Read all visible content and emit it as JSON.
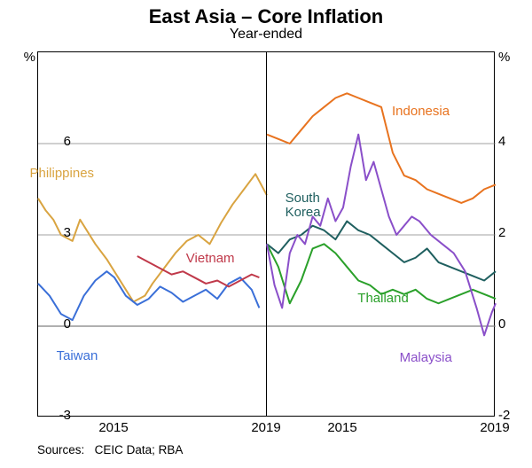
{
  "title": "East Asia – Core Inflation",
  "subtitle": "Year-ended",
  "sources_label": "Sources:",
  "sources_value": "CEIC Data; RBA",
  "pct_symbol": "%",
  "left_panel": {
    "ylim": [
      -3,
      9
    ],
    "yticks": [
      -3,
      0,
      3,
      6
    ],
    "xlim": [
      2013,
      2019
    ],
    "xticks": [
      2015,
      2019
    ],
    "grid_color": "#808080",
    "series": {
      "philippines": {
        "label": "Philippines",
        "color": "#d9a441",
        "label_pos": {
          "x": 2013.5,
          "y": 5.0
        },
        "data": [
          [
            2013.0,
            4.2
          ],
          [
            2013.2,
            3.8
          ],
          [
            2013.4,
            3.5
          ],
          [
            2013.6,
            3.0
          ],
          [
            2013.9,
            2.8
          ],
          [
            2014.1,
            3.5
          ],
          [
            2014.3,
            3.1
          ],
          [
            2014.5,
            2.7
          ],
          [
            2014.8,
            2.2
          ],
          [
            2015.0,
            1.8
          ],
          [
            2015.3,
            1.2
          ],
          [
            2015.5,
            0.8
          ],
          [
            2015.8,
            1.0
          ],
          [
            2016.0,
            1.4
          ],
          [
            2016.3,
            1.9
          ],
          [
            2016.6,
            2.4
          ],
          [
            2016.9,
            2.8
          ],
          [
            2017.2,
            3.0
          ],
          [
            2017.5,
            2.7
          ],
          [
            2017.8,
            3.4
          ],
          [
            2018.1,
            4.0
          ],
          [
            2018.4,
            4.5
          ],
          [
            2018.7,
            5.0
          ],
          [
            2019.0,
            4.3
          ]
        ]
      },
      "taiwan": {
        "label": "Taiwan",
        "color": "#3a6fd8",
        "label_pos": {
          "x": 2014.2,
          "y": -1.0
        },
        "data": [
          [
            2013.0,
            1.4
          ],
          [
            2013.3,
            1.0
          ],
          [
            2013.6,
            0.4
          ],
          [
            2013.9,
            0.2
          ],
          [
            2014.2,
            1.0
          ],
          [
            2014.5,
            1.5
          ],
          [
            2014.8,
            1.8
          ],
          [
            2015.0,
            1.6
          ],
          [
            2015.3,
            1.0
          ],
          [
            2015.6,
            0.7
          ],
          [
            2015.9,
            0.9
          ],
          [
            2016.2,
            1.3
          ],
          [
            2016.5,
            1.1
          ],
          [
            2016.8,
            0.8
          ],
          [
            2017.1,
            1.0
          ],
          [
            2017.4,
            1.2
          ],
          [
            2017.7,
            0.9
          ],
          [
            2018.0,
            1.4
          ],
          [
            2018.3,
            1.6
          ],
          [
            2018.6,
            1.2
          ],
          [
            2018.8,
            0.6
          ]
        ]
      },
      "vietnam": {
        "label": "Vietnam",
        "color": "#c0394a",
        "label_pos": {
          "x": 2017.6,
          "y": 2.2
        },
        "data": [
          [
            2015.6,
            2.3
          ],
          [
            2015.9,
            2.1
          ],
          [
            2016.2,
            1.9
          ],
          [
            2016.5,
            1.7
          ],
          [
            2016.8,
            1.8
          ],
          [
            2017.1,
            1.6
          ],
          [
            2017.4,
            1.4
          ],
          [
            2017.7,
            1.5
          ],
          [
            2018.0,
            1.3
          ],
          [
            2018.3,
            1.5
          ],
          [
            2018.6,
            1.7
          ],
          [
            2018.8,
            1.6
          ]
        ]
      }
    }
  },
  "right_panel": {
    "ylim": [
      -2,
      6
    ],
    "yticks": [
      -2,
      0,
      2,
      4
    ],
    "xlim": [
      2013,
      2019
    ],
    "xticks": [
      2015,
      2019
    ],
    "grid_color": "#808080",
    "series": {
      "indonesia": {
        "label": "Indonesia",
        "color": "#e8731f",
        "label_pos": {
          "x": 2017.0,
          "y": 4.7
        },
        "data": [
          [
            2013.0,
            4.2
          ],
          [
            2013.3,
            4.1
          ],
          [
            2013.6,
            4.0
          ],
          [
            2013.9,
            4.3
          ],
          [
            2014.2,
            4.6
          ],
          [
            2014.5,
            4.8
          ],
          [
            2014.8,
            5.0
          ],
          [
            2015.1,
            5.1
          ],
          [
            2015.4,
            5.0
          ],
          [
            2015.7,
            4.9
          ],
          [
            2016.0,
            4.8
          ],
          [
            2016.3,
            3.8
          ],
          [
            2016.6,
            3.3
          ],
          [
            2016.9,
            3.2
          ],
          [
            2017.2,
            3.0
          ],
          [
            2017.5,
            2.9
          ],
          [
            2017.8,
            2.8
          ],
          [
            2018.1,
            2.7
          ],
          [
            2018.4,
            2.8
          ],
          [
            2018.7,
            3.0
          ],
          [
            2019.0,
            3.1
          ]
        ]
      },
      "south_korea": {
        "label": "South Korea",
        "color": "#1f5f5f",
        "label_pos": {
          "x": 2014.2,
          "y": 2.8
        },
        "data": [
          [
            2013.0,
            1.8
          ],
          [
            2013.3,
            1.6
          ],
          [
            2013.6,
            1.9
          ],
          [
            2013.9,
            2.0
          ],
          [
            2014.2,
            2.2
          ],
          [
            2014.5,
            2.1
          ],
          [
            2014.8,
            1.9
          ],
          [
            2015.1,
            2.3
          ],
          [
            2015.4,
            2.1
          ],
          [
            2015.7,
            2.0
          ],
          [
            2016.0,
            1.8
          ],
          [
            2016.3,
            1.6
          ],
          [
            2016.6,
            1.4
          ],
          [
            2016.9,
            1.5
          ],
          [
            2017.2,
            1.7
          ],
          [
            2017.5,
            1.4
          ],
          [
            2017.8,
            1.3
          ],
          [
            2018.1,
            1.2
          ],
          [
            2018.4,
            1.1
          ],
          [
            2018.7,
            1.0
          ],
          [
            2019.0,
            1.2
          ]
        ]
      },
      "thailand": {
        "label": "Thailand",
        "color": "#2aa02a",
        "label_pos": {
          "x": 2016.1,
          "y": 0.6
        },
        "data": [
          [
            2013.0,
            1.8
          ],
          [
            2013.3,
            1.3
          ],
          [
            2013.6,
            0.5
          ],
          [
            2013.9,
            1.0
          ],
          [
            2014.2,
            1.7
          ],
          [
            2014.5,
            1.8
          ],
          [
            2014.8,
            1.6
          ],
          [
            2015.1,
            1.3
          ],
          [
            2015.4,
            1.0
          ],
          [
            2015.7,
            0.9
          ],
          [
            2016.0,
            0.7
          ],
          [
            2016.3,
            0.8
          ],
          [
            2016.6,
            0.7
          ],
          [
            2016.9,
            0.8
          ],
          [
            2017.2,
            0.6
          ],
          [
            2017.5,
            0.5
          ],
          [
            2017.8,
            0.6
          ],
          [
            2018.1,
            0.7
          ],
          [
            2018.4,
            0.8
          ],
          [
            2018.7,
            0.7
          ],
          [
            2019.0,
            0.6
          ]
        ]
      },
      "malaysia": {
        "label": "Malaysia",
        "color": "#8a4fc9",
        "label_pos": {
          "x": 2017.2,
          "y": -0.7
        },
        "data": [
          [
            2013.0,
            1.8
          ],
          [
            2013.2,
            0.9
          ],
          [
            2013.4,
            0.4
          ],
          [
            2013.6,
            1.6
          ],
          [
            2013.8,
            2.0
          ],
          [
            2014.0,
            1.8
          ],
          [
            2014.2,
            2.4
          ],
          [
            2014.4,
            2.2
          ],
          [
            2014.6,
            2.8
          ],
          [
            2014.8,
            2.3
          ],
          [
            2015.0,
            2.6
          ],
          [
            2015.2,
            3.5
          ],
          [
            2015.4,
            4.2
          ],
          [
            2015.6,
            3.2
          ],
          [
            2015.8,
            3.6
          ],
          [
            2016.0,
            3.0
          ],
          [
            2016.2,
            2.4
          ],
          [
            2016.4,
            2.0
          ],
          [
            2016.6,
            2.2
          ],
          [
            2016.8,
            2.4
          ],
          [
            2017.0,
            2.3
          ],
          [
            2017.3,
            2.0
          ],
          [
            2017.6,
            1.8
          ],
          [
            2017.9,
            1.6
          ],
          [
            2018.2,
            1.2
          ],
          [
            2018.5,
            0.4
          ],
          [
            2018.7,
            -0.2
          ],
          [
            2018.9,
            0.3
          ],
          [
            2019.0,
            0.5
          ]
        ]
      }
    }
  },
  "colors": {
    "background": "#ffffff",
    "border": "#000000",
    "text": "#000000"
  },
  "fonts": {
    "title_size": 22,
    "subtitle_size": 16,
    "axis_size": 15,
    "label_size": 15,
    "source_size": 13.5
  }
}
